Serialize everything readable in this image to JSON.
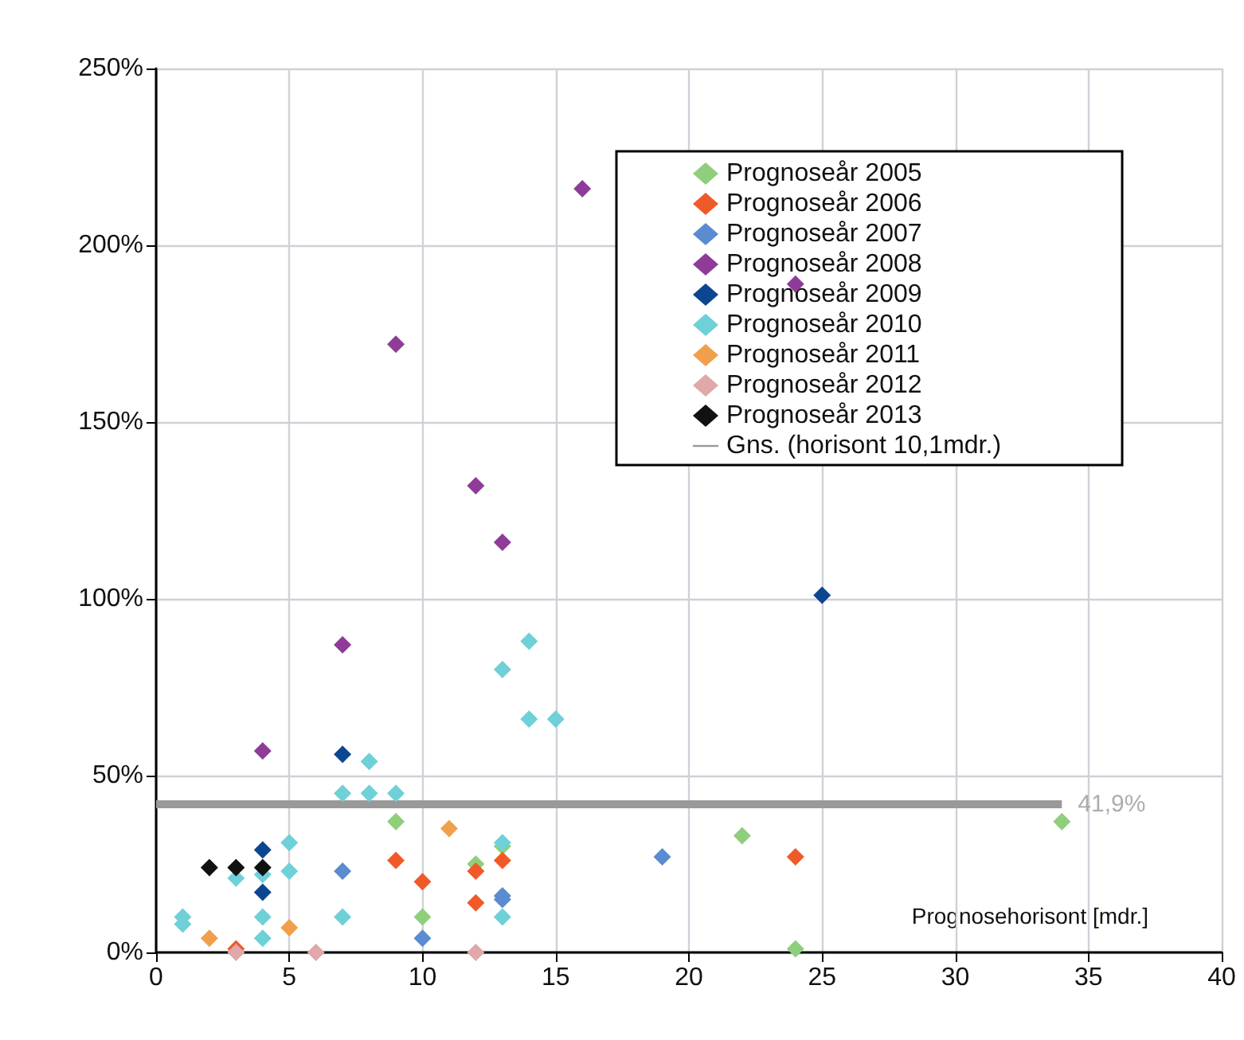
{
  "chart_data": {
    "type": "scatter",
    "xlabel": "Prognosehorisont [mdr.]",
    "marker": "diamond",
    "grid": true,
    "legend": "top right",
    "xlim": [
      0,
      40
    ],
    "xticks": [
      0,
      5,
      10,
      15,
      20,
      25,
      30,
      35,
      40
    ],
    "ylim": [
      0,
      250
    ],
    "yticks": [
      {
        "value": 0,
        "label": "0%"
      },
      {
        "value": 50,
        "label": "50%"
      },
      {
        "value": 100,
        "label": "100%"
      },
      {
        "value": 150,
        "label": "150%"
      },
      {
        "value": 200,
        "label": "200%"
      },
      {
        "value": 250,
        "label": "250%"
      }
    ],
    "series": [
      {
        "name": "Prognoseår 2005",
        "color": "#8fcf7c",
        "x": [
          9,
          12,
          10,
          13,
          22,
          24,
          34
        ],
        "values": [
          37,
          25,
          10,
          30,
          33,
          1,
          37
        ]
      },
      {
        "name": "Prognoseår 2006",
        "color": "#f05a28",
        "x": [
          3,
          9,
          10,
          12,
          12,
          13,
          24
        ],
        "values": [
          1,
          26,
          20,
          23,
          14,
          26,
          27
        ]
      },
      {
        "name": "Prognoseår 2007",
        "color": "#5b8bd0",
        "x": [
          7,
          10,
          13,
          13,
          19
        ],
        "values": [
          23,
          4,
          15,
          16,
          27
        ]
      },
      {
        "name": "Prognoseår 2008",
        "color": "#8e3c97",
        "x": [
          4,
          7,
          9,
          12,
          13,
          16,
          24
        ],
        "values": [
          57,
          87,
          172,
          132,
          116,
          216,
          189
        ]
      },
      {
        "name": "Prognoseår 2009",
        "color": "#0d4690",
        "x": [
          4,
          4,
          7,
          25
        ],
        "values": [
          29,
          17,
          56,
          101
        ]
      },
      {
        "name": "Prognoseår 2010",
        "color": "#6fd0d8",
        "x": [
          1,
          1,
          3,
          4,
          4,
          4,
          5,
          5,
          7,
          7,
          8,
          8,
          9,
          13,
          13,
          13,
          14,
          14,
          15
        ],
        "values": [
          10,
          8,
          21,
          22,
          10,
          4,
          31,
          23,
          10,
          45,
          45,
          54,
          45,
          31,
          80,
          10,
          88,
          66,
          66
        ]
      },
      {
        "name": "Prognoseår 2011",
        "color": "#f0a04c",
        "x": [
          2,
          5,
          11
        ],
        "values": [
          4,
          7,
          35
        ]
      },
      {
        "name": "Prognoseår 2012",
        "color": "#e0a8a8",
        "x": [
          3,
          6,
          12
        ],
        "values": [
          0,
          0,
          0
        ]
      },
      {
        "name": "Prognoseår 2013",
        "color": "#111111",
        "x": [
          2,
          3,
          4
        ],
        "values": [
          24,
          24,
          24
        ]
      },
      {
        "name": "Gns. (horisont 10,1mdr.)",
        "type": "line",
        "color": "#999999",
        "marker": "none",
        "x": [
          0,
          34
        ],
        "values": [
          41.9,
          41.9
        ]
      }
    ],
    "annotations": [
      {
        "text": "41,9%",
        "x": 34,
        "y": 41.9
      }
    ]
  }
}
